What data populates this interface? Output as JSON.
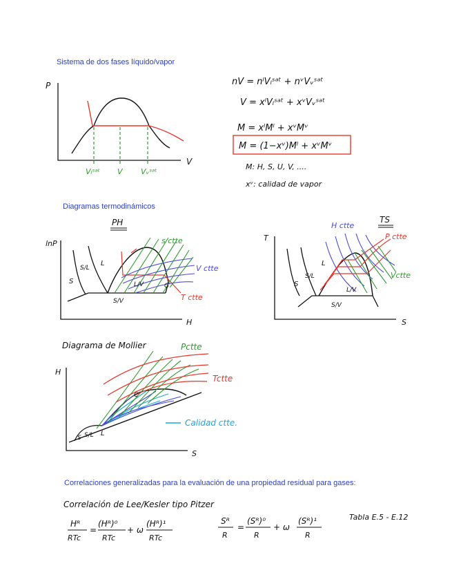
{
  "headings": {
    "two_phase": "Sistema de dos fases líquido/vapor",
    "diagrams": "Diagramas termodinámicos",
    "correlations": "Correlaciones generalizadas para la evaluación de una propiedad residual para gases:"
  },
  "two_phase_plot": {
    "axis_p": "P",
    "axis_v": "V",
    "label_vl": "Vₗˢᵃᵗ",
    "label_v": "V",
    "label_vv": "Vᵥˢᵃᵗ"
  },
  "equations": {
    "eq1": "nV = nˡVₗˢᵃᵗ + nᵛVᵥˢᵃᵗ",
    "eq2": "V = xˡVₗˢᵃᵗ + xᵛVᵥˢᵃᵗ",
    "eq3": "M = xˡMˡ + xᵛMᵛ",
    "eq4": "M = (1−xᵛ)Mˡ + xᵛMᵛ",
    "note1": "M: H, S, U, V, ....",
    "note2": "xᵛ: calidad de vapor"
  },
  "ph_diagram": {
    "title": "PH",
    "axis_y": "lnP",
    "axis_x": "H",
    "region_s": "S",
    "region_sl": "S/L",
    "region_l": "L",
    "region_lv": "L/V",
    "region_sv": "S/V",
    "region_g": "G",
    "label_sctte": "s ctte",
    "label_vctte": "V ctte",
    "label_tctte": "T ctte"
  },
  "ts_diagram": {
    "title": "TS",
    "axis_y": "T",
    "axis_x": "S",
    "region_s": "S",
    "region_sl": "S/L",
    "region_l": "L",
    "region_lv": "L/V",
    "region_sv": "S/V",
    "label_hctte": "H ctte",
    "label_pctte": "P ctte",
    "label_vctte": "Vctte"
  },
  "mollier": {
    "title": "Diagrama de Mollier",
    "axis_y": "H",
    "axis_x": "S",
    "region_s": "S",
    "region_sl": "S/L",
    "region_l": "L",
    "point_c": "C",
    "label_pctte": "Pctte",
    "label_tctte": "Tctte",
    "label_calidad": "Calidad ctte."
  },
  "correlation": {
    "title": "Correlación de Lee/Kesler tipo Pitzer",
    "h_lhs_num": "Hᴿ",
    "h_lhs_den": "RTc",
    "h_t0_num": "(Hᴿ)⁰",
    "h_t0_den": "RTc",
    "h_t1_num": "(Hᴿ)¹",
    "h_t1_den": "RTc",
    "s_lhs_num": "Sᴿ",
    "s_lhs_den": "R",
    "s_t0_num": "(Sᴿ)⁰",
    "s_t0_den": "R",
    "s_t1_num": "(Sᴿ)¹",
    "s_t1_den": "R",
    "equals": "=",
    "plus_omega": "+ ω",
    "tabla": "Tabla E.5 - E.12"
  },
  "colors": {
    "heading": "#2b3fc4",
    "ink": "#111111",
    "red": "#e8362c",
    "green": "#2e9a2e",
    "blue": "#4a4ad6",
    "cyan": "#18a8e0"
  }
}
